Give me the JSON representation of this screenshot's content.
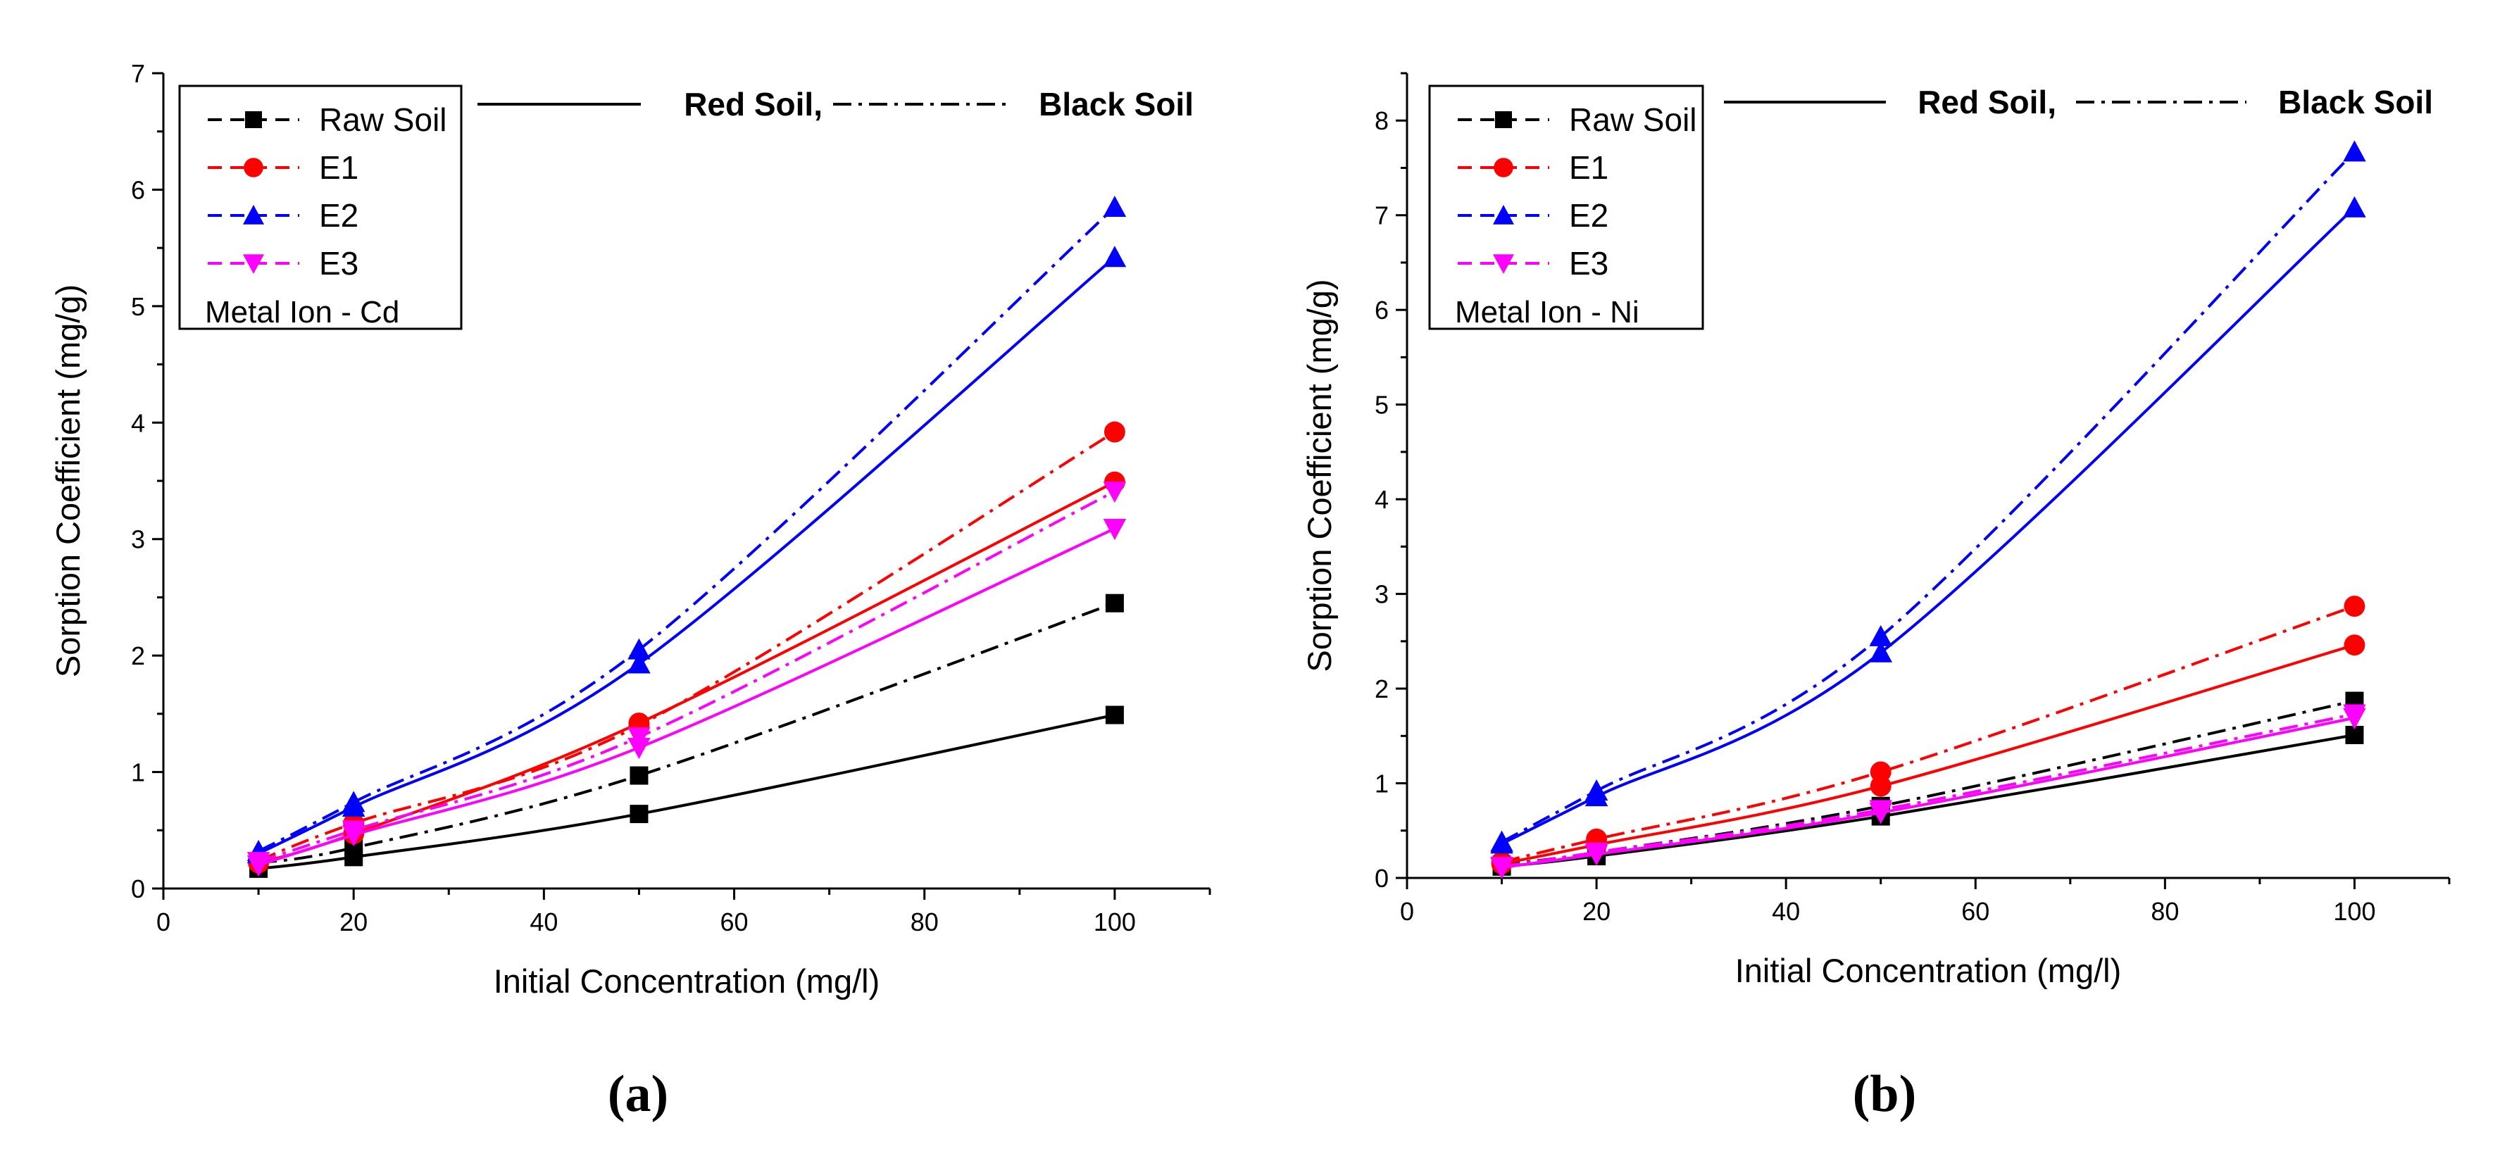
{
  "figure": {
    "panel_labels": [
      "(a)",
      "(b)"
    ]
  },
  "colors": {
    "raw": "#000000",
    "e1": "#ff0000",
    "e2": "#0000ff",
    "e3": "#ff00ff",
    "axis": "#000000"
  },
  "chart_data": [
    {
      "type": "line",
      "panel": "(a)",
      "xlabel": "Initial Concentration (mg/l)",
      "ylabel": "Sorption Coefficient (mg/g)",
      "xlim": [
        0,
        110
      ],
      "ylim": [
        0,
        7
      ],
      "xticks": [
        0,
        20,
        40,
        60,
        80,
        100
      ],
      "yticks": [
        0,
        1,
        2,
        3,
        4,
        5,
        6,
        7
      ],
      "x": [
        10,
        20,
        50,
        100
      ],
      "legend": {
        "entries": [
          "Raw Soil",
          "E1",
          "E2",
          "E3"
        ],
        "note": "Metal Ion - Cd",
        "style_key": {
          "solid_label": "Red Soil,",
          "dashdot_label": "Black Soil"
        }
      },
      "series": [
        {
          "name": "Raw Soil",
          "soil": "Red Soil",
          "color_key": "raw",
          "marker": "square",
          "values": [
            0.17,
            0.27,
            0.64,
            1.49
          ]
        },
        {
          "name": "Raw Soil",
          "soil": "Black Soil",
          "color_key": "raw",
          "marker": "square",
          "values": [
            0.22,
            0.35,
            0.97,
            2.45
          ]
        },
        {
          "name": "E1",
          "soil": "Red Soil",
          "color_key": "e1",
          "marker": "circle",
          "values": [
            0.22,
            0.47,
            1.42,
            3.49
          ]
        },
        {
          "name": "E1",
          "soil": "Black Soil",
          "color_key": "e1",
          "marker": "circle",
          "values": [
            0.24,
            0.56,
            1.4,
            3.92
          ]
        },
        {
          "name": "E2",
          "soil": "Red Soil",
          "color_key": "e2",
          "marker": "triangle-up",
          "values": [
            0.3,
            0.7,
            1.93,
            5.42
          ]
        },
        {
          "name": "E2",
          "soil": "Black Soil",
          "color_key": "e2",
          "marker": "triangle-up",
          "values": [
            0.32,
            0.74,
            2.05,
            5.85
          ]
        },
        {
          "name": "E3",
          "soil": "Red Soil",
          "color_key": "e3",
          "marker": "triangle-down",
          "values": [
            0.2,
            0.46,
            1.21,
            3.09
          ]
        },
        {
          "name": "E3",
          "soil": "Black Soil",
          "color_key": "e3",
          "marker": "triangle-down",
          "values": [
            0.23,
            0.5,
            1.3,
            3.41
          ]
        }
      ]
    },
    {
      "type": "line",
      "panel": "(b)",
      "xlabel": "Initial Concentration (mg/l)",
      "ylabel": "Sorption Coefficient (mg/g)",
      "xlim": [
        0,
        110
      ],
      "ylim": [
        0,
        8.5
      ],
      "xticks": [
        0,
        20,
        40,
        60,
        80,
        100
      ],
      "yticks": [
        0,
        1,
        2,
        3,
        4,
        5,
        6,
        7,
        8
      ],
      "x": [
        10,
        20,
        50,
        100
      ],
      "legend": {
        "entries": [
          "Raw Soil",
          "E1",
          "E2",
          "E3"
        ],
        "note": "Metal Ion - Ni",
        "style_key": {
          "solid_label": "Red Soil,",
          "dashdot_label": "Black Soil"
        }
      },
      "series": [
        {
          "name": "Raw Soil",
          "soil": "Red Soil",
          "color_key": "raw",
          "marker": "square",
          "values": [
            0.12,
            0.23,
            0.65,
            1.51
          ]
        },
        {
          "name": "Raw Soil",
          "soil": "Black Soil",
          "color_key": "raw",
          "marker": "square",
          "values": [
            0.14,
            0.27,
            0.76,
            1.87
          ]
        },
        {
          "name": "E1",
          "soil": "Red Soil",
          "color_key": "e1",
          "marker": "circle",
          "values": [
            0.15,
            0.35,
            0.97,
            2.46
          ]
        },
        {
          "name": "E1",
          "soil": "Black Soil",
          "color_key": "e1",
          "marker": "circle",
          "values": [
            0.17,
            0.41,
            1.12,
            2.87
          ]
        },
        {
          "name": "E2",
          "soil": "Red Soil",
          "color_key": "e2",
          "marker": "triangle-up",
          "values": [
            0.36,
            0.86,
            2.38,
            7.08
          ]
        },
        {
          "name": "E2",
          "soil": "Black Soil",
          "color_key": "e2",
          "marker": "triangle-up",
          "values": [
            0.38,
            0.92,
            2.55,
            7.67
          ]
        },
        {
          "name": "E3",
          "soil": "Red Soil",
          "color_key": "e3",
          "marker": "triangle-down",
          "values": [
            0.11,
            0.25,
            0.69,
            1.69
          ]
        },
        {
          "name": "E3",
          "soil": "Black Soil",
          "color_key": "e3",
          "marker": "triangle-down",
          "values": [
            0.12,
            0.27,
            0.72,
            1.73
          ]
        }
      ]
    }
  ]
}
